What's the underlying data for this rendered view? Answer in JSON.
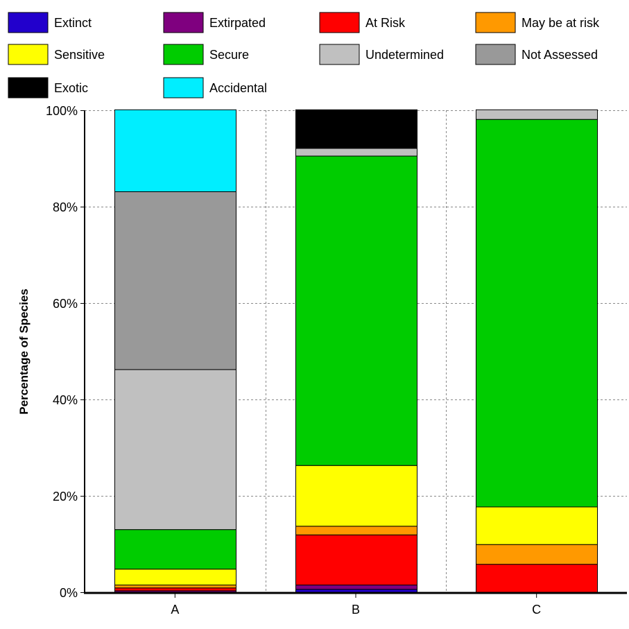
{
  "chart_data": {
    "type": "bar",
    "stacked": true,
    "title": "",
    "xlabel": "",
    "ylabel": "Percentage of Species",
    "ylim": [
      0,
      100
    ],
    "y_ticks": [
      "0%",
      "20%",
      "40%",
      "60%",
      "80%",
      "100%"
    ],
    "y_tick_values": [
      0,
      20,
      40,
      60,
      80,
      100
    ],
    "grid": true,
    "legend_position": "top",
    "categories": [
      "A",
      "B",
      "C"
    ],
    "series": [
      {
        "name": "Extinct",
        "color": "#2200cc",
        "values": [
          0.0,
          0.6,
          0.0
        ]
      },
      {
        "name": "Extirpated",
        "color": "#7f007f",
        "values": [
          0.3,
          0.9,
          0.0
        ]
      },
      {
        "name": "At Risk",
        "color": "#ff0000",
        "values": [
          0.6,
          10.4,
          5.8
        ]
      },
      {
        "name": "May be at risk",
        "color": "#ff9900",
        "values": [
          0.6,
          1.8,
          4.1
        ]
      },
      {
        "name": "Sensitive",
        "color": "#ffff00",
        "values": [
          3.3,
          12.6,
          7.8
        ]
      },
      {
        "name": "Secure",
        "color": "#00cc00",
        "values": [
          8.2,
          64.2,
          80.4
        ]
      },
      {
        "name": "Undetermined",
        "color": "#c0c0c0",
        "values": [
          33.2,
          1.6,
          2.0
        ]
      },
      {
        "name": "Not Assessed",
        "color": "#999999",
        "values": [
          36.9,
          0.0,
          0.0
        ]
      },
      {
        "name": "Exotic",
        "color": "#000000",
        "values": [
          0.0,
          8.0,
          0.0
        ]
      },
      {
        "name": "Accidental",
        "color": "#00eeff",
        "values": [
          17.0,
          0.0,
          0.0
        ]
      }
    ]
  }
}
